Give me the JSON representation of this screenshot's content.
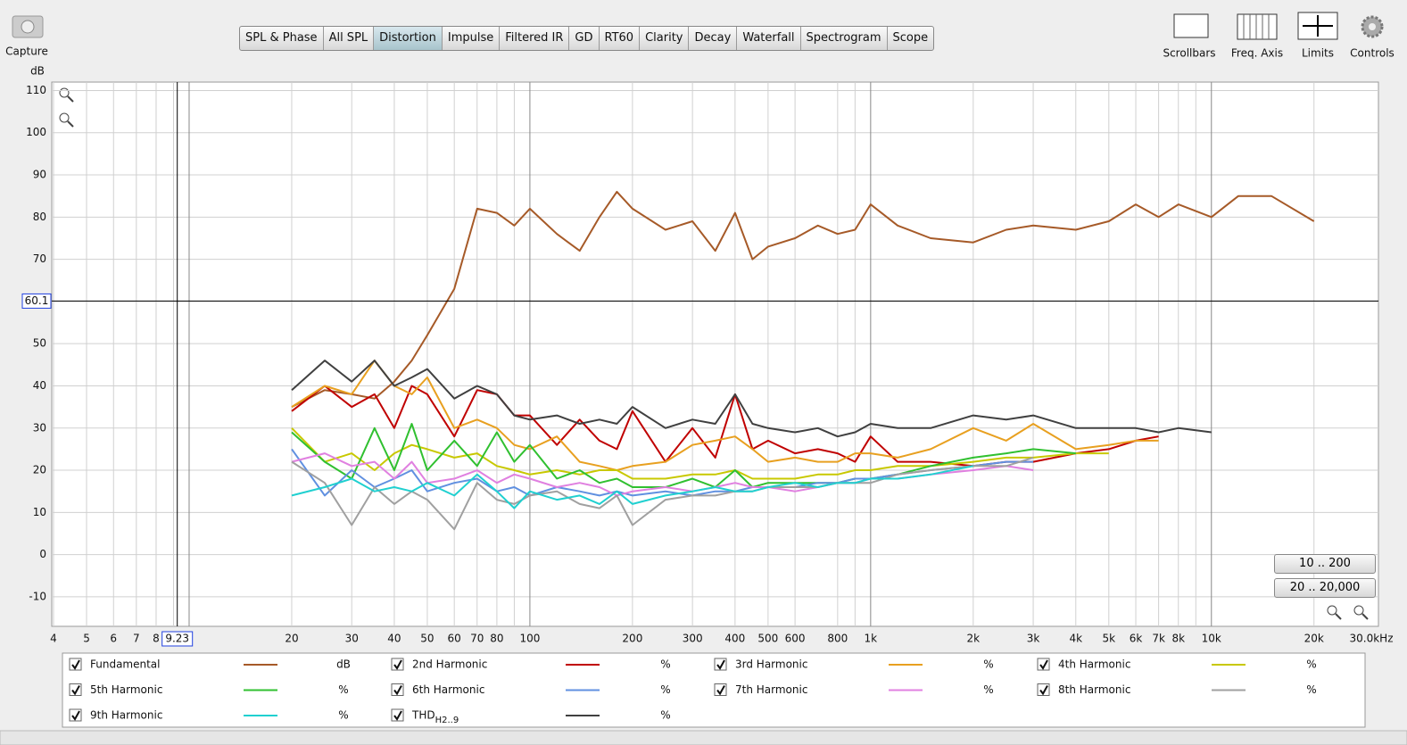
{
  "toolbar": {
    "capture": "Capture",
    "tabs": [
      "SPL & Phase",
      "All SPL",
      "Distortion",
      "Impulse",
      "Filtered IR",
      "GD",
      "RT60",
      "Clarity",
      "Decay",
      "Waterfall",
      "Spectrogram",
      "Scope"
    ],
    "active": "Distortion",
    "tools": [
      "Scrollbars",
      "Freq. Axis",
      "Limits",
      "Controls"
    ]
  },
  "range_buttons": [
    "10 .. 200",
    "20 .. 20,000"
  ],
  "cursor": {
    "x": 9.23,
    "y": 60.1
  },
  "chart_data": {
    "type": "line",
    "ylabel": "dB",
    "xlog": true,
    "grid": true,
    "xlim": [
      4,
      30000
    ],
    "ylim": [
      -17,
      112
    ],
    "yticks": [
      -10,
      0,
      10,
      20,
      30,
      40,
      50,
      60,
      70,
      80,
      90,
      100,
      110
    ],
    "xticks": [
      4,
      5,
      6,
      7,
      8,
      20,
      30,
      40,
      50,
      60,
      70,
      80,
      100,
      200,
      300,
      400,
      500,
      600,
      800,
      {
        "value": 1000,
        "label": "1k"
      },
      {
        "value": 2000,
        "label": "2k"
      },
      {
        "value": 3000,
        "label": "3k"
      },
      {
        "value": 4000,
        "label": "4k"
      },
      {
        "value": 5000,
        "label": "5k"
      },
      {
        "value": 6000,
        "label": "6k"
      },
      {
        "value": 7000,
        "label": "7k"
      },
      {
        "value": 8000,
        "label": "8k"
      },
      {
        "value": 10000,
        "label": "10k"
      },
      {
        "value": 20000,
        "label": "20k"
      },
      {
        "value": 30000,
        "label": "30.0kHz"
      }
    ],
    "xminor": [
      9,
      10,
      90,
      900,
      9000
    ],
    "x": [
      20,
      25,
      30,
      35,
      40,
      45,
      50,
      60,
      70,
      80,
      90,
      100,
      120,
      140,
      160,
      180,
      200,
      250,
      300,
      350,
      400,
      450,
      500,
      600,
      700,
      800,
      900,
      1000,
      1200,
      1500,
      2000,
      2500,
      3000,
      4000,
      5000,
      6000,
      7000,
      8000,
      10000,
      12000,
      15000,
      20000
    ],
    "series": [
      {
        "name": "Fundamental",
        "unit": "dB",
        "color": "#a65a28",
        "values": [
          35,
          39,
          38,
          37,
          41,
          46,
          52,
          63,
          82,
          81,
          78,
          82,
          76,
          72,
          80,
          86,
          82,
          77,
          79,
          72,
          81,
          70,
          73,
          75,
          78,
          76,
          77,
          83,
          78,
          75,
          74,
          77,
          78,
          77,
          79,
          83,
          80,
          83,
          80,
          85,
          85,
          79
        ]
      },
      {
        "name": "2nd Harmonic",
        "unit": "%",
        "color": "#c00000",
        "values": [
          34,
          40,
          35,
          38,
          30,
          40,
          38,
          28,
          39,
          38,
          33,
          33,
          26,
          32,
          27,
          25,
          34,
          22,
          30,
          23,
          38,
          25,
          27,
          24,
          25,
          24,
          22,
          28,
          22,
          22,
          21,
          22,
          22,
          24,
          25,
          27,
          28,
          null,
          null,
          null,
          null,
          null
        ]
      },
      {
        "name": "3rd Harmonic",
        "unit": "%",
        "color": "#e8a020",
        "values": [
          35,
          40,
          38,
          46,
          40,
          38,
          42,
          30,
          32,
          30,
          26,
          25,
          28,
          22,
          21,
          20,
          21,
          22,
          26,
          27,
          28,
          25,
          22,
          23,
          22,
          22,
          24,
          24,
          23,
          25,
          30,
          27,
          31,
          25,
          26,
          27,
          27,
          null,
          null,
          null,
          null,
          null
        ]
      },
      {
        "name": "4th Harmonic",
        "unit": "%",
        "color": "#c8c800",
        "values": [
          30,
          22,
          24,
          20,
          24,
          26,
          25,
          23,
          24,
          21,
          20,
          19,
          20,
          19,
          20,
          20,
          18,
          18,
          19,
          19,
          20,
          18,
          18,
          18,
          19,
          19,
          20,
          20,
          21,
          21,
          22,
          23,
          23,
          24,
          24,
          null,
          null,
          null,
          null,
          null,
          null,
          null
        ]
      },
      {
        "name": "5th Harmonic",
        "unit": "%",
        "color": "#30c030",
        "values": [
          29,
          22,
          18,
          30,
          20,
          31,
          20,
          27,
          21,
          29,
          22,
          26,
          18,
          20,
          17,
          18,
          16,
          16,
          18,
          16,
          20,
          16,
          17,
          17,
          17,
          17,
          18,
          18,
          19,
          21,
          23,
          24,
          25,
          24,
          null,
          null,
          null,
          null,
          null,
          null,
          null,
          null
        ]
      },
      {
        "name": "6th Harmonic",
        "unit": "%",
        "color": "#6090e0",
        "values": [
          25,
          14,
          20,
          16,
          18,
          20,
          15,
          17,
          18,
          15,
          16,
          14,
          16,
          15,
          14,
          15,
          14,
          15,
          14,
          15,
          15,
          16,
          16,
          16,
          17,
          17,
          18,
          18,
          19,
          20,
          21,
          22,
          22,
          null,
          null,
          null,
          null,
          null,
          null,
          null,
          null,
          null
        ]
      },
      {
        "name": "7th Harmonic",
        "unit": "%",
        "color": "#e080e0",
        "values": [
          22,
          24,
          21,
          22,
          18,
          22,
          17,
          18,
          20,
          17,
          19,
          18,
          16,
          17,
          16,
          14,
          15,
          16,
          15,
          16,
          17,
          16,
          16,
          15,
          16,
          17,
          17,
          18,
          18,
          19,
          20,
          21,
          20,
          null,
          null,
          null,
          null,
          null,
          null,
          null,
          null,
          null
        ]
      },
      {
        "name": "8th Harmonic",
        "unit": "%",
        "color": "#a0a0a0",
        "values": [
          22,
          17,
          7,
          16,
          12,
          15,
          13,
          6,
          17,
          13,
          12,
          14,
          15,
          12,
          11,
          14,
          7,
          13,
          14,
          14,
          15,
          15,
          16,
          16,
          16,
          17,
          17,
          17,
          19,
          20,
          21,
          21,
          23,
          null,
          null,
          null,
          null,
          null,
          null,
          null,
          null,
          null
        ]
      },
      {
        "name": "9th Harmonic",
        "unit": "%",
        "color": "#20d0d0",
        "values": [
          14,
          16,
          18,
          15,
          16,
          15,
          17,
          14,
          19,
          15,
          11,
          15,
          13,
          14,
          12,
          15,
          12,
          14,
          15,
          16,
          15,
          15,
          16,
          17,
          16,
          17,
          17,
          18,
          18,
          19,
          21,
          null,
          null,
          null,
          null,
          null,
          null,
          null,
          null,
          null,
          null,
          null
        ]
      },
      {
        "name": "THD",
        "sub": "H2..9",
        "unit": "%",
        "color": "#404040",
        "values": [
          39,
          46,
          41,
          46,
          40,
          42,
          44,
          37,
          40,
          38,
          33,
          32,
          33,
          31,
          32,
          31,
          35,
          30,
          32,
          31,
          38,
          31,
          30,
          29,
          30,
          28,
          29,
          31,
          30,
          30,
          33,
          32,
          33,
          30,
          30,
          30,
          29,
          30,
          29,
          null,
          null,
          null
        ]
      }
    ]
  }
}
